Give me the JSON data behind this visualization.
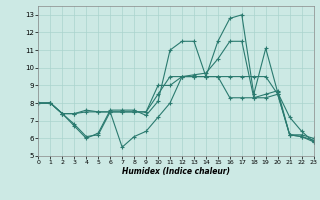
{
  "title": "",
  "xlabel": "Humidex (Indice chaleur)",
  "xlim": [
    0,
    23
  ],
  "ylim": [
    5,
    13.5
  ],
  "yticks": [
    5,
    6,
    7,
    8,
    9,
    10,
    11,
    12,
    13
  ],
  "xticks": [
    0,
    1,
    2,
    3,
    4,
    5,
    6,
    7,
    8,
    9,
    10,
    11,
    12,
    13,
    14,
    15,
    16,
    17,
    18,
    19,
    20,
    21,
    22,
    23
  ],
  "background_color": "#cce9e4",
  "grid_color": "#aad4ce",
  "line_color": "#2a7a6f",
  "lines": [
    {
      "x": [
        0,
        1,
        2,
        3,
        4,
        5,
        6,
        7,
        8,
        9,
        10,
        11,
        12,
        13,
        14,
        15,
        16,
        17,
        18,
        19,
        20,
        21,
        22,
        23
      ],
      "y": [
        8,
        8,
        7.4,
        6.7,
        6.0,
        6.3,
        7.6,
        7.6,
        7.6,
        7.3,
        8.1,
        11.0,
        11.5,
        11.5,
        9.5,
        11.5,
        12.8,
        13.0,
        8.5,
        11.1,
        8.6,
        7.2,
        6.4,
        5.8
      ]
    },
    {
      "x": [
        0,
        1,
        2,
        3,
        4,
        5,
        6,
        7,
        8,
        9,
        10,
        11,
        12,
        13,
        14,
        15,
        16,
        17,
        18,
        19,
        20,
        21,
        22,
        23
      ],
      "y": [
        8,
        8,
        7.4,
        6.8,
        6.1,
        6.2,
        7.5,
        5.5,
        6.1,
        6.4,
        7.2,
        8.0,
        9.5,
        9.6,
        9.7,
        10.5,
        11.5,
        11.5,
        8.3,
        8.5,
        8.7,
        6.2,
        6.1,
        5.8
      ]
    },
    {
      "x": [
        0,
        1,
        2,
        3,
        4,
        5,
        6,
        7,
        8,
        9,
        10,
        11,
        12,
        13,
        14,
        15,
        16,
        17,
        18,
        19,
        20,
        21,
        22,
        23
      ],
      "y": [
        8,
        8,
        7.4,
        7.4,
        7.5,
        7.5,
        7.5,
        7.5,
        7.5,
        7.5,
        8.5,
        9.5,
        9.5,
        9.5,
        9.5,
        9.5,
        8.3,
        8.3,
        8.3,
        8.3,
        8.5,
        6.2,
        6.1,
        5.9
      ]
    },
    {
      "x": [
        0,
        1,
        2,
        3,
        4,
        5,
        6,
        7,
        8,
        9,
        10,
        11,
        12,
        13,
        14,
        15,
        16,
        17,
        18,
        19,
        20,
        21,
        22,
        23
      ],
      "y": [
        8,
        8,
        7.4,
        7.4,
        7.6,
        7.5,
        7.5,
        7.5,
        7.5,
        7.5,
        9.0,
        9.0,
        9.5,
        9.5,
        9.5,
        9.5,
        9.5,
        9.5,
        9.5,
        9.5,
        8.5,
        6.2,
        6.2,
        6.0
      ]
    }
  ]
}
